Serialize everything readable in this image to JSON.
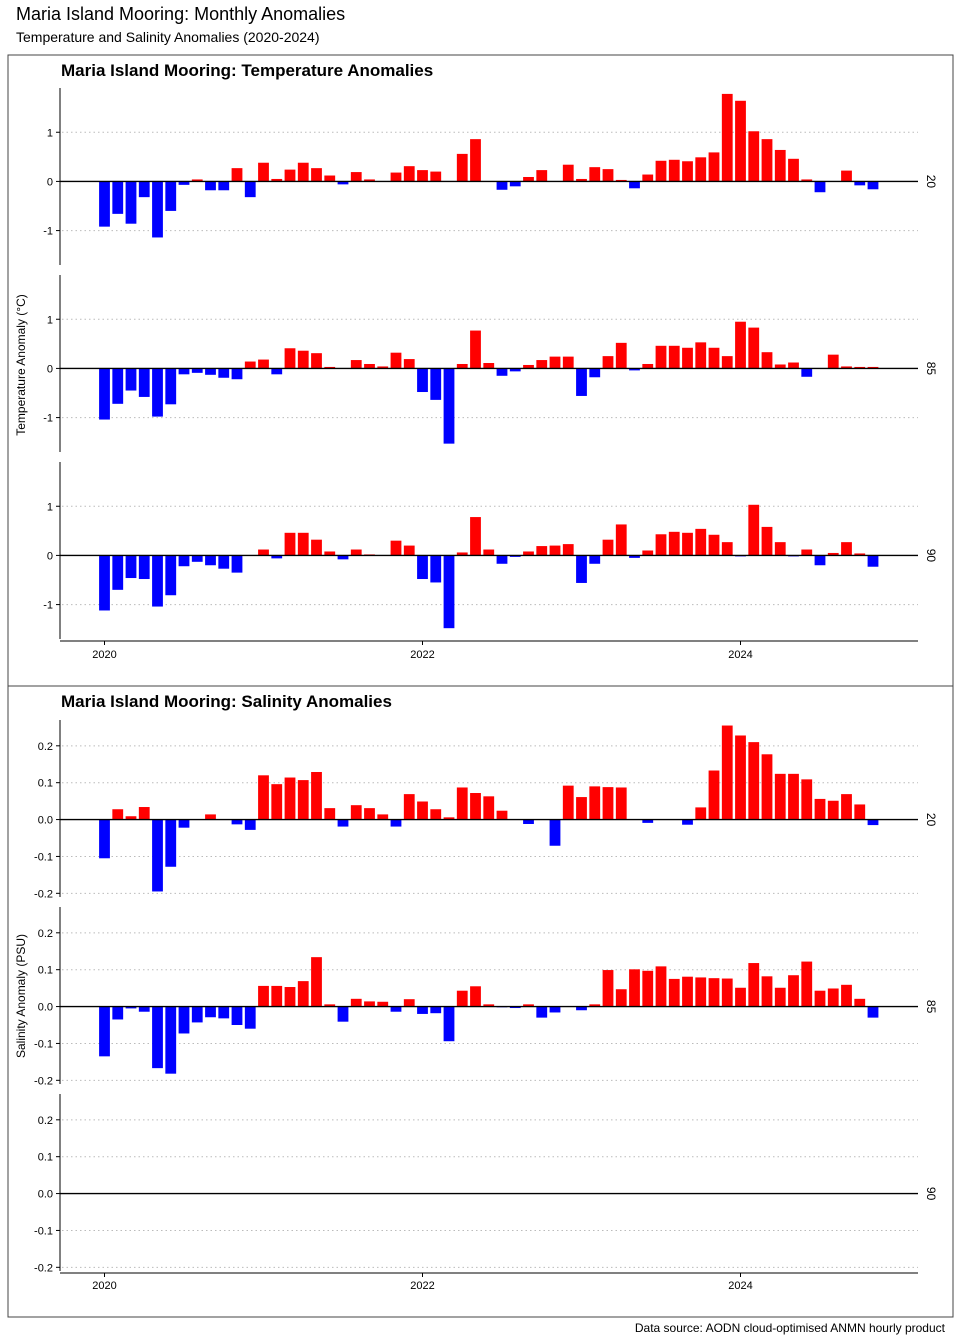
{
  "page": {
    "title": "Maria Island Mooring: Monthly Anomalies",
    "subtitle": "Temperature and Salinity Anomalies (2020-2024)",
    "caption": "Data source: AODN cloud-optimised ANMN hourly product"
  },
  "colors": {
    "positive": "#ff0000",
    "negative": "#0000ff"
  },
  "chart_data": [
    {
      "type": "bar",
      "title": "Maria Island Mooring: Temperature Anomalies",
      "ylabel": "Temperature Anomaly (°C)",
      "xlabel": "",
      "x_ticks": [
        "2020",
        "2022",
        "2024"
      ],
      "x_tick_months": [
        0,
        24,
        48
      ],
      "ylim": [
        -1.7,
        1.9
      ],
      "y_ticks": [
        -1,
        0,
        1
      ],
      "grid": "horizontal dotted",
      "month_start": "2020-01",
      "facets": [
        {
          "label": "20",
          "values": [
            -0.92,
            -0.66,
            -0.86,
            -0.32,
            -1.14,
            -0.6,
            -0.07,
            0.04,
            -0.18,
            -0.18,
            0.27,
            -0.32,
            0.38,
            0.05,
            0.24,
            0.38,
            0.27,
            0.12,
            -0.06,
            0.19,
            0.04,
            0.0,
            0.18,
            0.31,
            0.23,
            0.2,
            0.0,
            0.56,
            0.86,
            0.0,
            -0.17,
            -0.1,
            0.09,
            0.23,
            -0.01,
            0.34,
            0.05,
            0.29,
            0.25,
            0.03,
            -0.14,
            0.14,
            0.42,
            0.44,
            0.41,
            0.49,
            0.59,
            1.78,
            1.64,
            1.02,
            0.86,
            0.64,
            0.46,
            0.04,
            -0.22,
            0.0,
            0.22,
            -0.08,
            -0.16
          ]
        },
        {
          "label": "85",
          "values": [
            -1.04,
            -0.72,
            -0.45,
            -0.58,
            -0.98,
            -0.73,
            -0.12,
            -0.09,
            -0.13,
            -0.19,
            -0.22,
            0.14,
            0.18,
            -0.12,
            0.41,
            0.36,
            0.31,
            0.03,
            0.0,
            0.17,
            0.09,
            0.04,
            0.32,
            0.19,
            -0.48,
            -0.64,
            -1.53,
            0.09,
            0.77,
            0.11,
            -0.15,
            -0.06,
            0.07,
            0.17,
            0.24,
            0.24,
            -0.56,
            -0.18,
            0.25,
            0.52,
            -0.04,
            0.09,
            0.46,
            0.46,
            0.42,
            0.53,
            0.42,
            0.25,
            0.95,
            0.83,
            0.33,
            0.08,
            0.12,
            -0.17,
            0.0,
            0.28,
            0.04,
            0.03,
            0.03
          ]
        },
        {
          "label": "90",
          "values": [
            -1.12,
            -0.7,
            -0.46,
            -0.48,
            -1.04,
            -0.81,
            -0.22,
            -0.13,
            -0.2,
            -0.27,
            -0.35,
            0.0,
            0.12,
            -0.06,
            0.46,
            0.46,
            0.32,
            0.08,
            -0.08,
            0.12,
            0.02,
            -0.01,
            0.3,
            0.2,
            -0.48,
            -0.55,
            -1.48,
            0.06,
            0.78,
            0.12,
            -0.17,
            -0.03,
            0.08,
            0.19,
            0.2,
            0.23,
            -0.56,
            -0.17,
            0.32,
            0.63,
            -0.05,
            0.1,
            0.43,
            0.48,
            0.46,
            0.54,
            0.42,
            0.27,
            -0.02,
            1.03,
            0.58,
            0.27,
            -0.02,
            0.12,
            -0.2,
            0.05,
            0.27,
            0.04,
            -0.23
          ]
        }
      ]
    },
    {
      "type": "bar",
      "title": "Maria Island Mooring: Salinity Anomalies",
      "ylabel": "Salinity Anomaly (PSU)",
      "xlabel": "",
      "x_ticks": [
        "2020",
        "2022",
        "2024"
      ],
      "x_tick_months": [
        0,
        24,
        48
      ],
      "ylim": [
        -0.21,
        0.27
      ],
      "y_ticks": [
        -0.2,
        -0.1,
        0.0,
        0.1,
        0.2
      ],
      "y_tick_labels": [
        "-0.2",
        "-0.1",
        "0.0",
        "0.1",
        "0.2"
      ],
      "grid": "horizontal dotted",
      "month_start": "2020-01",
      "facets": [
        {
          "label": "20",
          "values": [
            -0.105,
            0.028,
            0.009,
            0.034,
            -0.195,
            -0.128,
            -0.022,
            0.0,
            0.014,
            0.001,
            -0.013,
            -0.028,
            0.12,
            0.096,
            0.114,
            0.107,
            0.129,
            0.031,
            -0.019,
            0.039,
            0.031,
            0.014,
            -0.019,
            0.069,
            0.049,
            0.028,
            0.006,
            0.087,
            0.072,
            0.063,
            0.024,
            0.0,
            -0.012,
            -0.001,
            -0.071,
            0.092,
            0.061,
            0.09,
            0.088,
            0.087,
            0.0,
            -0.009,
            0.0,
            0.0,
            -0.014,
            0.033,
            0.133,
            0.255,
            0.228,
            0.21,
            0.177,
            0.124,
            0.124,
            0.109,
            0.056,
            0.051,
            0.069,
            0.041,
            -0.015
          ]
        },
        {
          "label": "85",
          "values": [
            -0.135,
            -0.035,
            -0.005,
            -0.014,
            -0.167,
            -0.182,
            -0.073,
            -0.043,
            -0.029,
            -0.032,
            -0.05,
            -0.06,
            0.056,
            0.056,
            0.053,
            0.069,
            0.134,
            0.006,
            -0.041,
            0.021,
            0.014,
            0.013,
            -0.014,
            0.02,
            -0.02,
            -0.018,
            -0.094,
            0.043,
            0.055,
            0.006,
            -0.002,
            -0.004,
            0.006,
            -0.03,
            -0.016,
            0.0,
            -0.01,
            0.006,
            0.099,
            0.047,
            0.101,
            0.097,
            0.109,
            0.075,
            0.081,
            0.079,
            0.077,
            0.076,
            0.051,
            0.118,
            0.082,
            0.051,
            0.085,
            0.122,
            0.043,
            0.049,
            0.059,
            0.021,
            -0.03
          ]
        },
        {
          "label": "90",
          "values": []
        }
      ]
    }
  ]
}
